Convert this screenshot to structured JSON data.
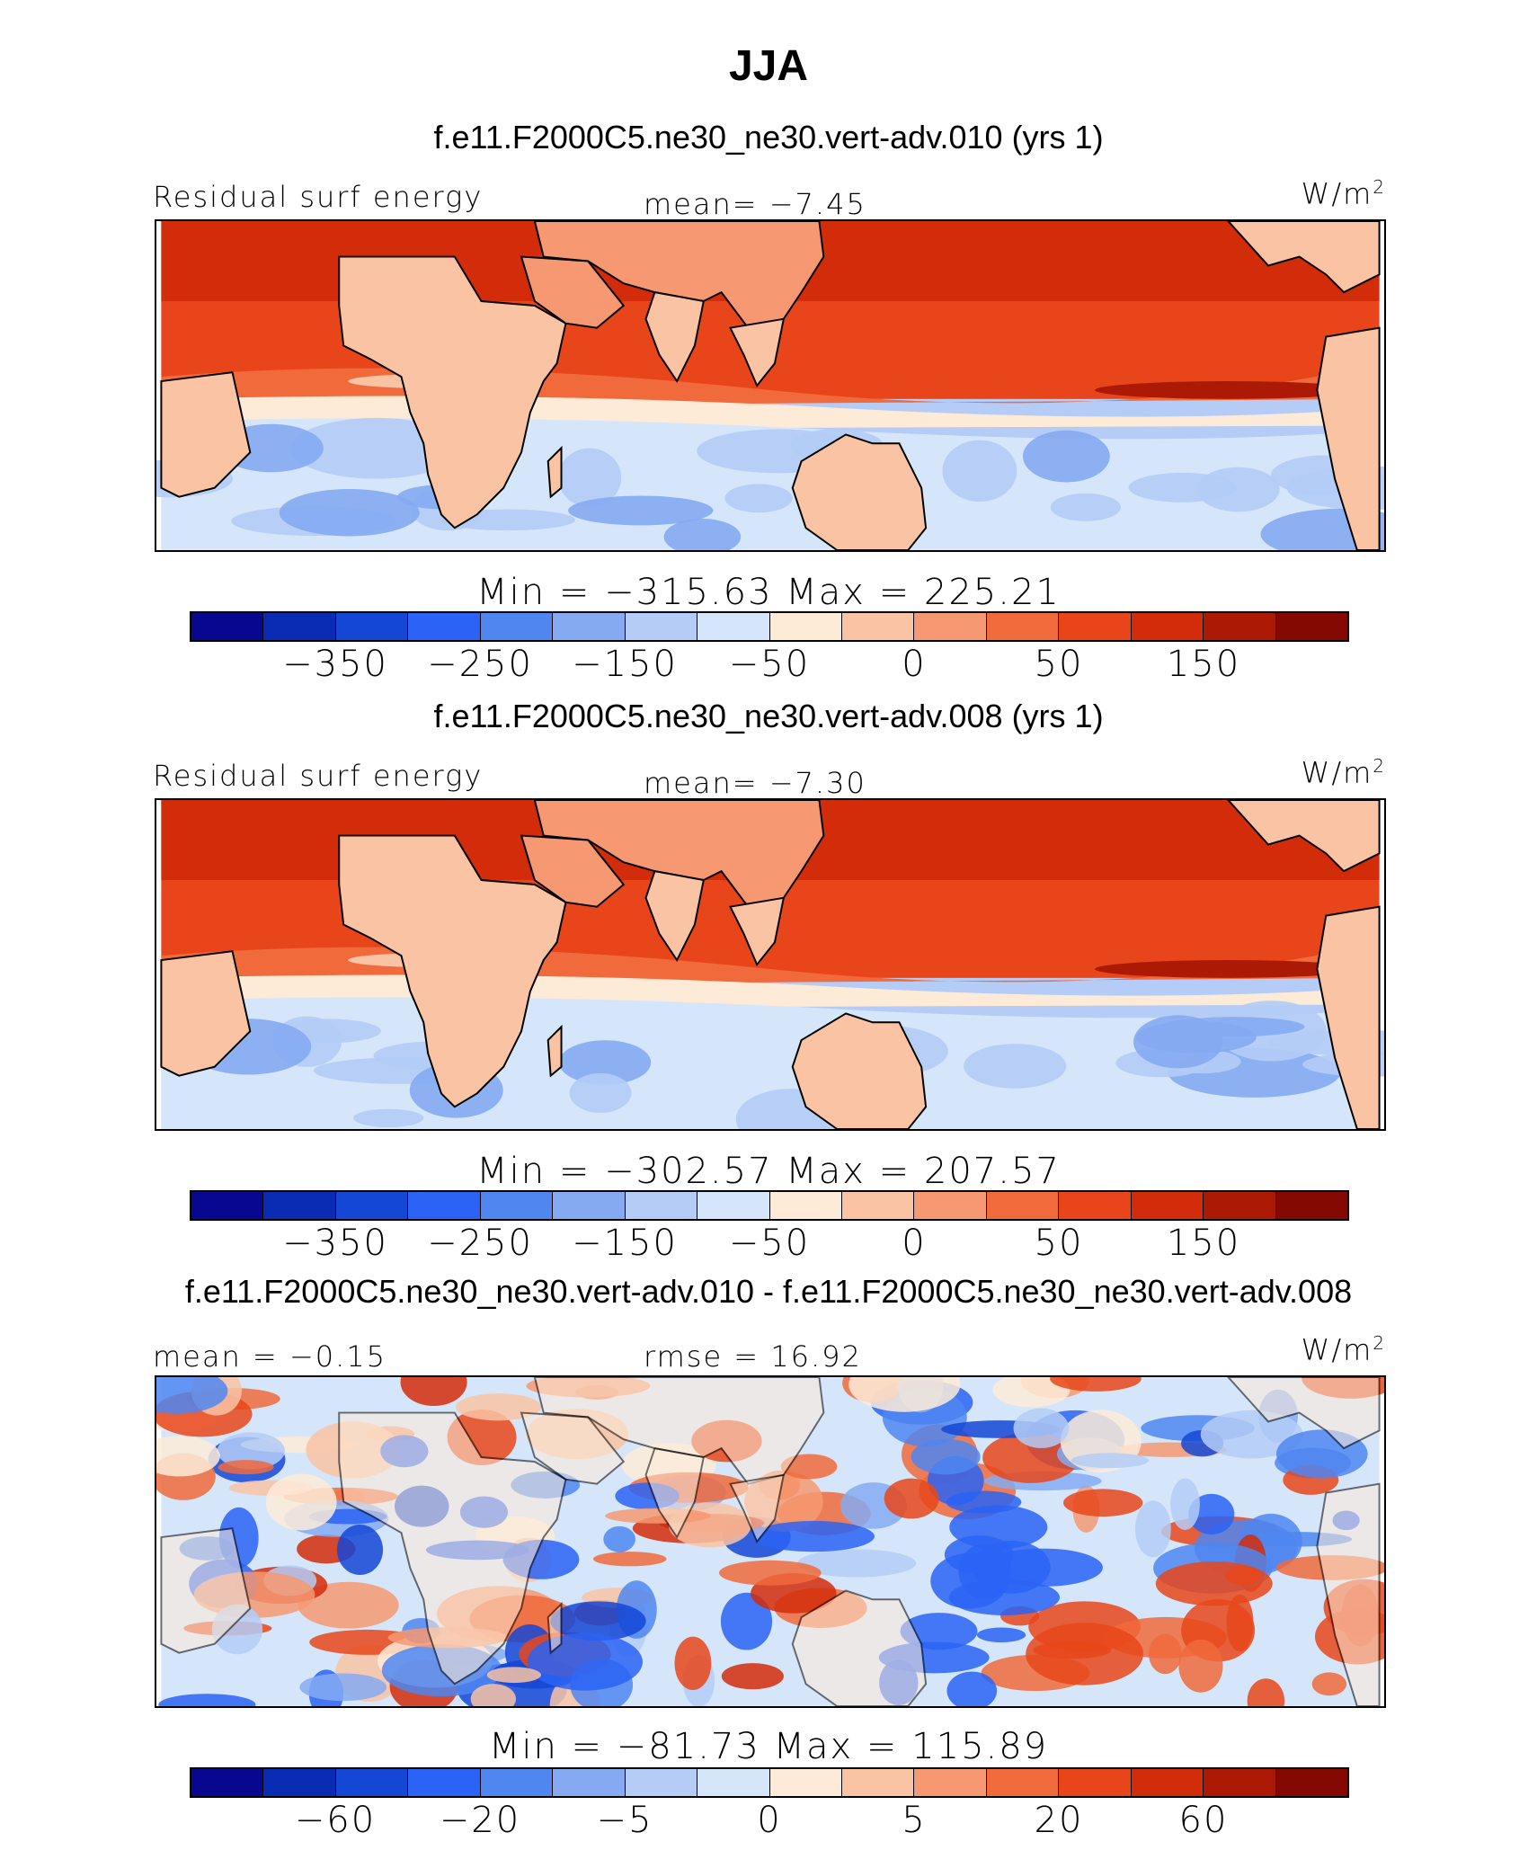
{
  "title": "JJA",
  "colors": {
    "diverging": [
      "#08078f",
      "#0a2cb4",
      "#1447d6",
      "#2a63f5",
      "#4f86f0",
      "#85aaf2",
      "#b4ccf6",
      "#d6e6fa",
      "#fdebd8",
      "#f9c3a4",
      "#f69972",
      "#f06a3c",
      "#e8461a",
      "#d32c0b",
      "#ac1a06",
      "#840903"
    ],
    "land": "#f8b89a",
    "coast": "#000000"
  },
  "panels": [
    {
      "title": "f.e11.F2000C5.ne30_ne30.vert-adv.010 (yrs 1)",
      "left_label": "Residual surf energy",
      "center_label": "mean=   −7.45",
      "units": "W/m",
      "units_sup": "2",
      "minmax": "Min = −315.63  Max = 225.21",
      "ticks": [
        "−350",
        "−250",
        "−150",
        "−50",
        "0",
        "50",
        "150"
      ]
    },
    {
      "title": "f.e11.F2000C5.ne30_ne30.vert-adv.008 (yrs 1)",
      "left_label": "Residual surf energy",
      "center_label": "mean=   −7.30",
      "units": "W/m",
      "units_sup": "2",
      "minmax": "Min = −302.57  Max = 207.57",
      "ticks": [
        "−350",
        "−250",
        "−150",
        "−50",
        "0",
        "50",
        "150"
      ]
    },
    {
      "title": "f.e11.F2000C5.ne30_ne30.vert-adv.010 - f.e11.F2000C5.ne30_ne30.vert-adv.008",
      "left_label": "mean =  −0.15",
      "center_label": "rmse =  16.92",
      "units": "W/m",
      "units_sup": "2",
      "minmax": "Min = −81.73  Max = 115.89",
      "ticks": [
        "−60",
        "−20",
        "−5",
        "0",
        "5",
        "20",
        "60"
      ]
    }
  ]
}
